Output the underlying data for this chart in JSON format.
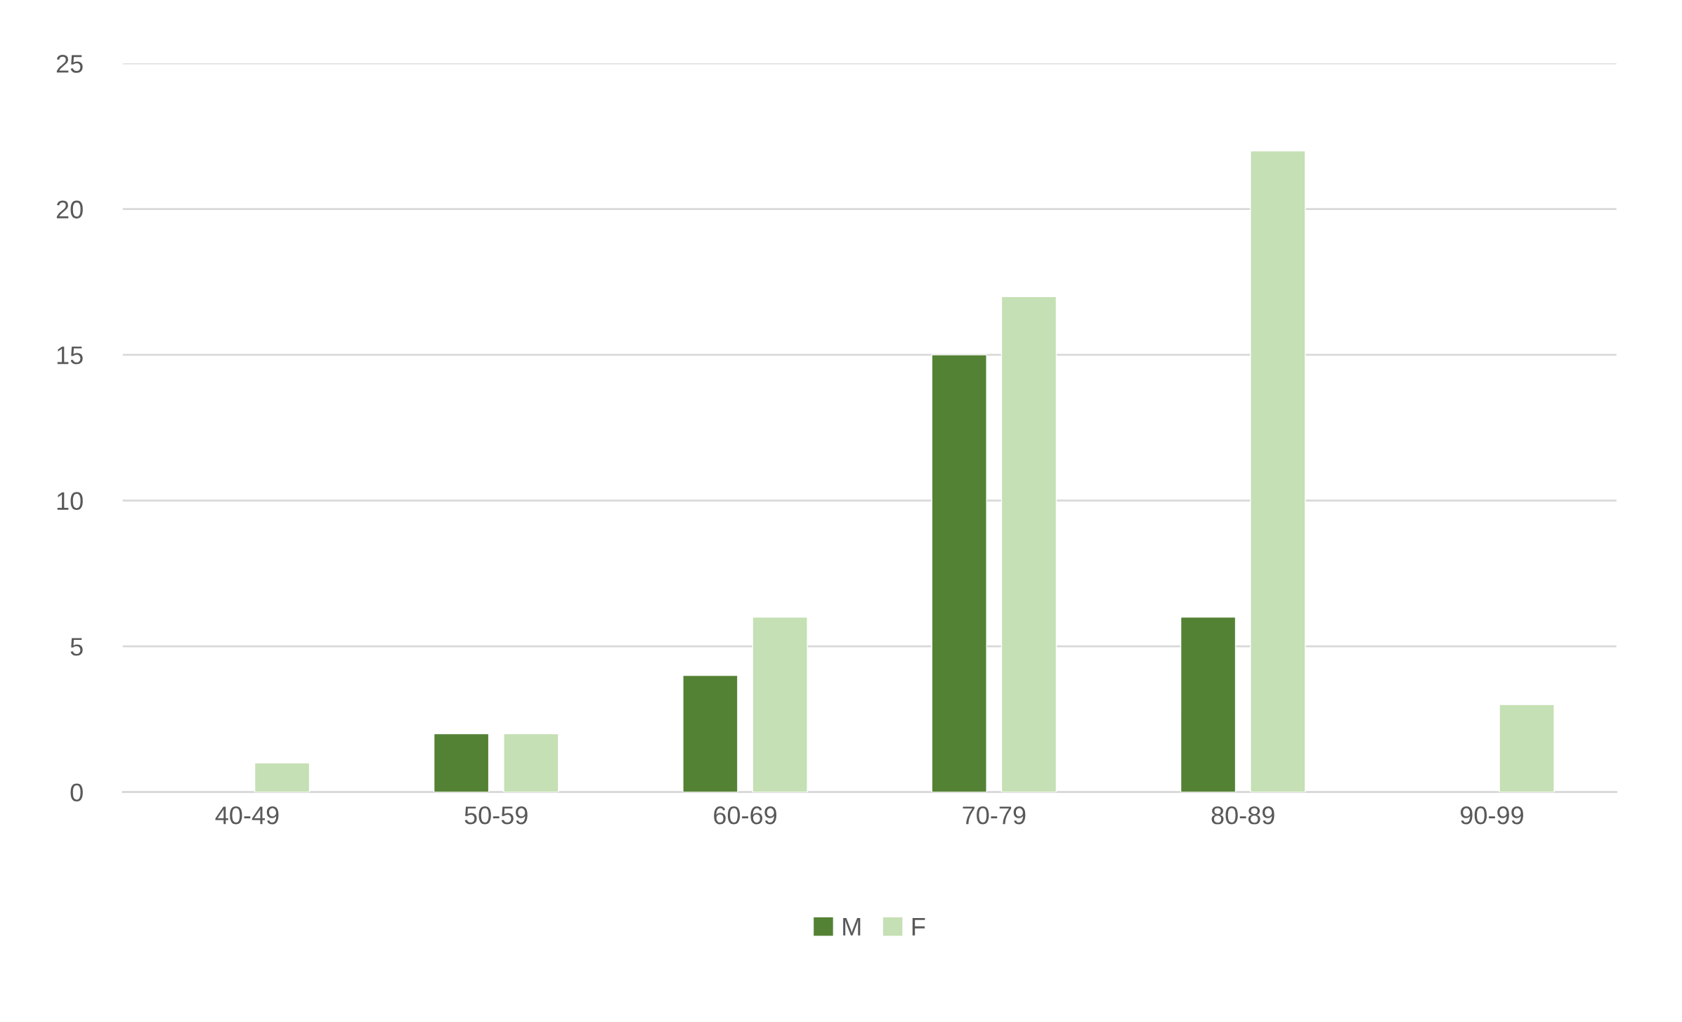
{
  "chart_data": {
    "type": "bar",
    "categories": [
      "40-49",
      "50-59",
      "60-69",
      "70-79",
      "80-89",
      "90-99"
    ],
    "series": [
      {
        "name": "M",
        "color": "#548235",
        "values": [
          null,
          2,
          4,
          15,
          6,
          null
        ]
      },
      {
        "name": "F",
        "color": "#c5e0b4",
        "values": [
          1,
          2,
          6,
          17,
          22,
          3
        ]
      }
    ],
    "ylim": [
      0,
      25
    ],
    "yticks": [
      0,
      5,
      10,
      15,
      20,
      25
    ],
    "grid": "y",
    "legend": "bottom"
  }
}
